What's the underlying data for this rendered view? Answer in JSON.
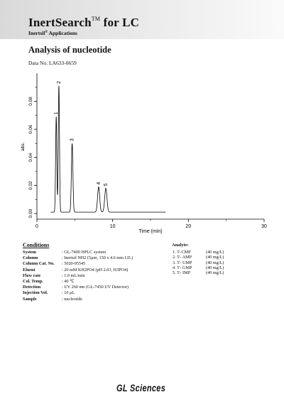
{
  "header": {
    "brand": "InertSearch",
    "trademark": "TM",
    "brand_suffix": " for LC",
    "subtitle_pre": "Inertsil",
    "subtitle_reg": "®",
    "subtitle_post": " Applications"
  },
  "doc": {
    "title": "Analysis of nucleotide",
    "data_no": "Data No. LA633-0659"
  },
  "chart_data": {
    "type": "line",
    "xlabel": "Time (min)",
    "ylabel": "abs.",
    "xlim": [
      0,
      30
    ],
    "ylim": [
      -0.004,
      0.1
    ],
    "x_ticks": [
      0,
      10,
      20,
      30
    ],
    "y_ticks": [
      0.0,
      0.02,
      0.04,
      0.06,
      0.08
    ],
    "x_tick_labels": [
      "0",
      "10",
      "20",
      "30"
    ],
    "y_tick_labels": [
      "0.00",
      "0.02",
      "0.04",
      "0.06",
      "0.08"
    ],
    "grid": false,
    "baseline": 0.001,
    "trace_end_min": 17,
    "peaks": [
      {
        "label": "1",
        "time": 2.55,
        "height": 0.068,
        "width": 0.08
      },
      {
        "label": "2",
        "time": 2.9,
        "height": 0.09,
        "width": 0.08
      },
      {
        "label": "3",
        "time": 4.65,
        "height": 0.049,
        "width": 0.1
      },
      {
        "label": "4",
        "time": 8.15,
        "height": 0.018,
        "width": 0.14
      },
      {
        "label": "5",
        "time": 9.1,
        "height": 0.017,
        "width": 0.15
      }
    ]
  },
  "conditions": {
    "title": "Conditions",
    "rows": [
      {
        "key": "System",
        "value": ": GL-7400 HPLC system"
      },
      {
        "key": "Column",
        "value": ": Inertsil NH2 (5µm, 150 x 4.6 mm I.D.)"
      },
      {
        "key": "Column Cat. No.",
        "value": ": 5020-05545"
      },
      {
        "key": "Eluent",
        "value": ": 20 mM KH2PO4 (pH 2.03, H3PO4)"
      },
      {
        "key": "Flow rate",
        "value": ": 1.0 mL/min"
      },
      {
        "key": "Col. Temp.",
        "value": ": 40 ℃"
      },
      {
        "key": "Detection",
        "value": ": UV 260 nm (GL-7450 UV Detector)"
      },
      {
        "key": "Injection Vol.",
        "value": ": 10 µL"
      },
      {
        "key": "Sample",
        "value": ": nucleotide"
      }
    ]
  },
  "analytes": {
    "title": "Analyte:",
    "items": [
      {
        "name": "1. 5'-CMP",
        "conc": "(40 mg/L)"
      },
      {
        "name": "2. 5'- AMP",
        "conc": "(40 mg/L)"
      },
      {
        "name": "3. 5'- UMP",
        "conc": "(40 mg/L)"
      },
      {
        "name": "4. 5'- GMP",
        "conc": "(40 mg/L)"
      },
      {
        "name": "5. 5'- IMP",
        "conc": "(40 mg/L)"
      }
    ]
  },
  "footer": {
    "logo": "GL Sciences"
  }
}
